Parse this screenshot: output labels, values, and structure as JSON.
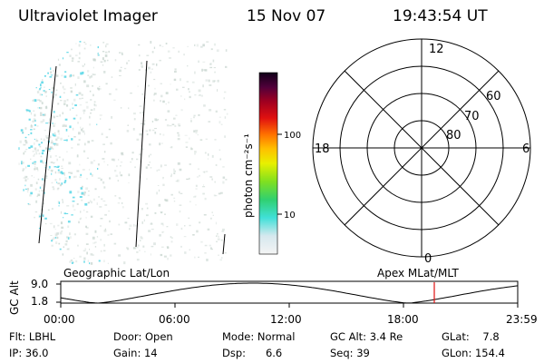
{
  "header": {
    "instrument": "Ultraviolet Imager",
    "date": "15 Nov 07",
    "time": "19:43:54 UT"
  },
  "colorbar": {
    "unit_label": "photon cm⁻²s⁻¹",
    "ticks": [
      "100",
      "10"
    ]
  },
  "polar_plot": {
    "latitude_labels": [
      "60",
      "70",
      "80"
    ],
    "mlt_labels": {
      "top": "12",
      "left": "18",
      "right": "6",
      "bottom": "0"
    }
  },
  "timeline": {
    "axis_label": "GC Alt",
    "y_ticks": [
      "9.0",
      "1.8"
    ],
    "left_caption": "Geographic Lat/Lon",
    "right_caption": "Apex  MLat/MLT",
    "x_ticks": [
      "00:00",
      "06:00",
      "12:00",
      "18:00",
      "23:59"
    ]
  },
  "info": {
    "filter": "Flt: LBHL",
    "ip": "IP: 36.0",
    "door": "Door: Open",
    "gain": "Gain: 14",
    "mode": "Mode: Normal",
    "dsp": "Dsp:      6.6",
    "gc_alt": "GC Alt: 3.4 Re",
    "seq": "Seq: 39",
    "glat": "GLat:    7.8",
    "glon": "GLon: 154.4"
  },
  "colors": {
    "aurora_speck": "#5fd8e8",
    "noise_speck": "#c9d6d0",
    "marker": "#e01010"
  }
}
